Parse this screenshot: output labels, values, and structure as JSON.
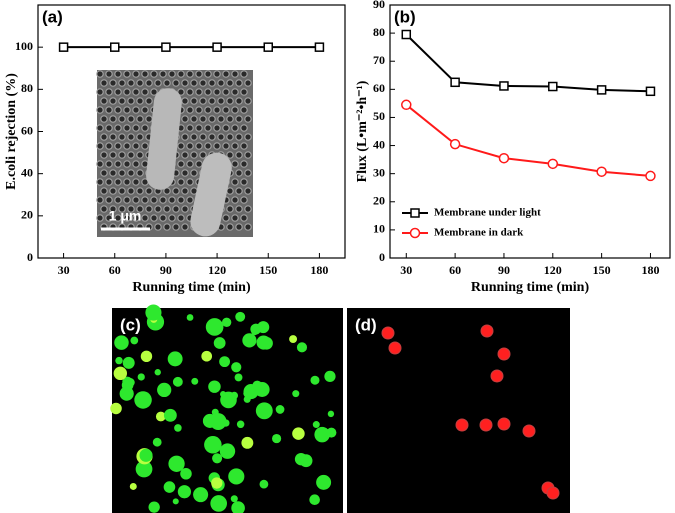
{
  "chart_data": [
    {
      "type": "line",
      "title": "(a)",
      "x": [
        30,
        60,
        90,
        120,
        150,
        180
      ],
      "series": [
        {
          "name": null,
          "color": "#000000",
          "marker": "square",
          "values": [
            100,
            100,
            100,
            100,
            100,
            100
          ]
        }
      ],
      "xlim": [
        15,
        195
      ],
      "xticks": [
        30,
        60,
        90,
        120,
        150,
        180
      ],
      "ylim": [
        0,
        120
      ],
      "yticks": [
        0,
        20,
        40,
        60,
        80,
        100
      ],
      "x_label": "Running time (min)",
      "y_label": "E.coli rejection (%)",
      "inset_scale_label": "1 μm"
    },
    {
      "type": "line",
      "title": "(b)",
      "x": [
        30,
        60,
        90,
        120,
        150,
        180
      ],
      "series": [
        {
          "name": "Membrane under light",
          "color": "#000000",
          "marker": "square",
          "values": [
            79.5,
            62.5,
            61.2,
            61,
            59.8,
            59.3
          ]
        },
        {
          "name": "Membrane in dark",
          "color": "#ff1a1a",
          "marker": "circle",
          "values": [
            54.5,
            40.5,
            35.5,
            33.5,
            30.7,
            29.2
          ]
        }
      ],
      "xlim": [
        20,
        192
      ],
      "xticks": [
        30,
        60,
        90,
        120,
        150,
        180
      ],
      "ylim": [
        0,
        90
      ],
      "yticks": [
        0,
        10,
        20,
        30,
        40,
        50,
        60,
        70,
        80,
        90
      ],
      "x_label": "Running time (min)",
      "y_label": "Flux (L•m⁻²•h⁻¹)",
      "legend": "lower left"
    }
  ],
  "images": [
    {
      "label": "(c)"
    },
    {
      "label": "(d)"
    }
  ]
}
